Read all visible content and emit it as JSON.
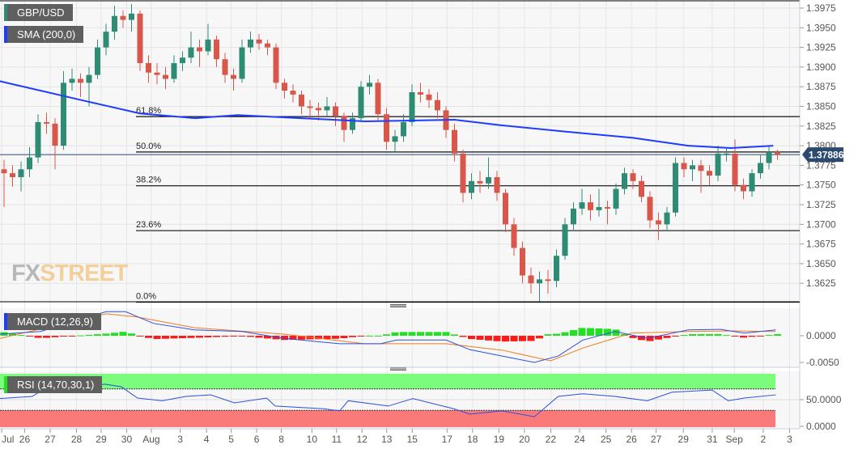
{
  "symbol": "GBP/USD",
  "indicators": {
    "sma": "SMA (200,0)",
    "macd": "MACD (12,26,9)",
    "rsi": "RSI (14,70,30,1)"
  },
  "logo": {
    "fx": "FX",
    "street": "STREET"
  },
  "colors": {
    "up": "#2e8b74",
    "down": "#d9574a",
    "sma": "#1e3cff",
    "macd": "#2b50e0",
    "signal": "#f07a20",
    "hist_up": "#22e022",
    "hist_down": "#ff1a1a",
    "rsi": "#2b50e0",
    "overbought": "#7cfc7c",
    "oversold": "#fa7a7a",
    "price_tag": "#2c4a6e"
  },
  "chart_data": [
    {
      "type": "candlestick",
      "title": "GBP/USD",
      "ylim": [
        1.3595,
        1.399
      ],
      "y_ticks": [
        "1.3975",
        "1.3950",
        "1.3925",
        "1.3900",
        "1.3875",
        "1.3850",
        "1.3825",
        "1.3800",
        "1.3775",
        "1.3750",
        "1.3725",
        "1.3700",
        "1.3675",
        "1.3650",
        "1.3625"
      ],
      "last_price": "1.37886",
      "x_labels": [
        [
          "Jul",
          0.2
        ],
        [
          "26",
          2.9
        ],
        [
          "27",
          5.9
        ],
        [
          "28",
          9
        ],
        [
          "29",
          11.9
        ],
        [
          "30",
          14.9
        ],
        [
          "Aug",
          17.8
        ],
        [
          "3",
          21.2
        ],
        [
          "4",
          24.3
        ],
        [
          "5",
          27.2
        ],
        [
          "6",
          30.2
        ],
        [
          "8",
          33.1
        ],
        [
          "10",
          36.7
        ],
        [
          "11",
          39.6
        ],
        [
          "12",
          42.6
        ],
        [
          "13",
          45.5
        ],
        [
          "15",
          48.5
        ],
        [
          "17",
          52.6
        ],
        [
          "18",
          55.6
        ],
        [
          "19",
          58.7
        ],
        [
          "20",
          61.7
        ],
        [
          "22",
          64.8
        ],
        [
          "24",
          68.2
        ],
        [
          "25",
          71.3
        ],
        [
          "26",
          74.3
        ],
        [
          "27",
          77.2
        ],
        [
          "29",
          80.4
        ],
        [
          "31",
          83.8
        ],
        [
          "Sep",
          86.4
        ],
        [
          "2",
          89.8
        ],
        [
          "3",
          92.9
        ]
      ],
      "fibonacci": [
        {
          "label": "61.8%",
          "price": 1.3837
        },
        {
          "label": "50.0%",
          "price": 1.3792
        },
        {
          "label": "38.2%",
          "price": 1.3749
        },
        {
          "label": "23.6%",
          "price": 1.3692
        },
        {
          "label": "0.0%",
          "price": 1.3601
        }
      ],
      "ohlc": [
        [
          1.377,
          1.3782,
          1.3722,
          1.3765
        ],
        [
          1.3765,
          1.3775,
          1.3748,
          1.376
        ],
        [
          1.376,
          1.378,
          1.3742,
          1.377
        ],
        [
          1.377,
          1.3798,
          1.376,
          1.3785
        ],
        [
          1.3785,
          1.384,
          1.3778,
          1.383
        ],
        [
          1.383,
          1.3842,
          1.3815,
          1.3828
        ],
        [
          1.3828,
          1.3835,
          1.377,
          1.38
        ],
        [
          1.38,
          1.3895,
          1.3795,
          1.388
        ],
        [
          1.388,
          1.3898,
          1.387,
          1.3885
        ],
        [
          1.3885,
          1.3892,
          1.3862,
          1.388
        ],
        [
          1.388,
          1.39,
          1.385,
          1.389
        ],
        [
          1.389,
          1.3935,
          1.3885,
          1.3925
        ],
        [
          1.3925,
          1.3955,
          1.3915,
          1.3945
        ],
        [
          1.3945,
          1.3978,
          1.3935,
          1.3965
        ],
        [
          1.3965,
          1.3972,
          1.395,
          1.396
        ],
        [
          1.396,
          1.398,
          1.3945,
          1.3968
        ],
        [
          1.3968,
          1.3972,
          1.3895,
          1.3905
        ],
        [
          1.3905,
          1.3915,
          1.388,
          1.3893
        ],
        [
          1.3893,
          1.3905,
          1.3878,
          1.389
        ],
        [
          1.389,
          1.39,
          1.3872,
          1.3885
        ],
        [
          1.3885,
          1.3915,
          1.388,
          1.3905
        ],
        [
          1.3905,
          1.392,
          1.3895,
          1.3912
        ],
        [
          1.3912,
          1.3945,
          1.3905,
          1.3925
        ],
        [
          1.3925,
          1.3935,
          1.39,
          1.392
        ],
        [
          1.392,
          1.3955,
          1.3915,
          1.3935
        ],
        [
          1.3935,
          1.394,
          1.39,
          1.391
        ],
        [
          1.391,
          1.3918,
          1.388,
          1.389
        ],
        [
          1.389,
          1.3898,
          1.387,
          1.3885
        ],
        [
          1.3885,
          1.3935,
          1.388,
          1.3925
        ],
        [
          1.3925,
          1.3945,
          1.3918,
          1.3935
        ],
        [
          1.3935,
          1.3942,
          1.3922,
          1.393
        ],
        [
          1.393,
          1.3935,
          1.3915,
          1.3925
        ],
        [
          1.3925,
          1.393,
          1.3872,
          1.388
        ],
        [
          1.388,
          1.3885,
          1.386,
          1.387
        ],
        [
          1.387,
          1.3878,
          1.3855,
          1.3865
        ],
        [
          1.3865,
          1.387,
          1.384,
          1.385
        ],
        [
          1.385,
          1.3858,
          1.3835,
          1.3848
        ],
        [
          1.3848,
          1.3855,
          1.3832,
          1.3845
        ],
        [
          1.3845,
          1.3862,
          1.3838,
          1.385
        ],
        [
          1.385,
          1.3855,
          1.3825,
          1.3838
        ],
        [
          1.3838,
          1.3842,
          1.3805,
          1.382
        ],
        [
          1.382,
          1.3842,
          1.3815,
          1.3835
        ],
        [
          1.3835,
          1.3882,
          1.383,
          1.3875
        ],
        [
          1.3875,
          1.389,
          1.3865,
          1.388
        ],
        [
          1.388,
          1.3885,
          1.3832,
          1.384
        ],
        [
          1.384,
          1.3848,
          1.3795,
          1.3805
        ],
        [
          1.3805,
          1.382,
          1.3792,
          1.3812
        ],
        [
          1.3812,
          1.384,
          1.3805,
          1.383
        ],
        [
          1.383,
          1.3878,
          1.3825,
          1.3868
        ],
        [
          1.3868,
          1.388,
          1.3855,
          1.3865
        ],
        [
          1.3865,
          1.3872,
          1.3848,
          1.3858
        ],
        [
          1.3858,
          1.3868,
          1.3835,
          1.3845
        ],
        [
          1.3845,
          1.385,
          1.381,
          1.382
        ],
        [
          1.382,
          1.3828,
          1.378,
          1.379
        ],
        [
          1.379,
          1.3795,
          1.3728,
          1.374
        ],
        [
          1.374,
          1.3765,
          1.3732,
          1.3755
        ],
        [
          1.3755,
          1.3768,
          1.374,
          1.3752
        ],
        [
          1.3752,
          1.3785,
          1.3745,
          1.376
        ],
        [
          1.376,
          1.3768,
          1.373,
          1.374
        ],
        [
          1.374,
          1.3745,
          1.369,
          1.37
        ],
        [
          1.37,
          1.3708,
          1.366,
          1.367
        ],
        [
          1.367,
          1.3678,
          1.3625,
          1.3635
        ],
        [
          1.3635,
          1.3645,
          1.3612,
          1.3625
        ],
        [
          1.3625,
          1.364,
          1.3602,
          1.363
        ],
        [
          1.363,
          1.3642,
          1.3612,
          1.3628
        ],
        [
          1.3628,
          1.3668,
          1.362,
          1.366
        ],
        [
          1.366,
          1.3708,
          1.3655,
          1.37
        ],
        [
          1.37,
          1.3728,
          1.3692,
          1.372
        ],
        [
          1.372,
          1.3745,
          1.3712,
          1.3728
        ],
        [
          1.3728,
          1.3738,
          1.3705,
          1.3718
        ],
        [
          1.3718,
          1.3745,
          1.371,
          1.3722
        ],
        [
          1.3722,
          1.373,
          1.37,
          1.372
        ],
        [
          1.372,
          1.3752,
          1.3712,
          1.3745
        ],
        [
          1.3745,
          1.3772,
          1.3738,
          1.3765
        ],
        [
          1.3765,
          1.377,
          1.3745,
          1.3755
        ],
        [
          1.3755,
          1.3762,
          1.3728,
          1.3735
        ],
        [
          1.3735,
          1.3742,
          1.3695,
          1.3705
        ],
        [
          1.3705,
          1.3715,
          1.368,
          1.37
        ],
        [
          1.37,
          1.3722,
          1.3692,
          1.3715
        ],
        [
          1.3715,
          1.3785,
          1.371,
          1.3778
        ],
        [
          1.3778,
          1.3785,
          1.376,
          1.377
        ],
        [
          1.377,
          1.3782,
          1.3755,
          1.3775
        ],
        [
          1.3775,
          1.3782,
          1.374,
          1.3768
        ],
        [
          1.3768,
          1.3775,
          1.375,
          1.3762
        ],
        [
          1.3762,
          1.38,
          1.3755,
          1.379
        ],
        [
          1.379,
          1.3798,
          1.378,
          1.379
        ],
        [
          1.379,
          1.3808,
          1.3742,
          1.375
        ],
        [
          1.375,
          1.3758,
          1.3732,
          1.3742
        ],
        [
          1.3742,
          1.377,
          1.3735,
          1.3765
        ],
        [
          1.3765,
          1.3788,
          1.3758,
          1.3778
        ],
        [
          1.3778,
          1.38,
          1.377,
          1.3792
        ],
        [
          1.3792,
          1.3795,
          1.3782,
          1.37886
        ]
      ],
      "sma_200": [
        [
          -0.5,
          1.3882
        ],
        [
          9.5,
          1.3857
        ],
        [
          16,
          1.3841
        ],
        [
          22.5,
          1.3835
        ],
        [
          27.5,
          1.3839
        ],
        [
          33,
          1.3836
        ],
        [
          42.5,
          1.3831
        ],
        [
          53,
          1.3833
        ],
        [
          58.5,
          1.3826
        ],
        [
          66,
          1.3818
        ],
        [
          74,
          1.381
        ],
        [
          80.5,
          1.38
        ],
        [
          85.5,
          1.3797
        ],
        [
          90.5,
          1.38
        ]
      ]
    },
    {
      "type": "line",
      "title": "MACD (12,26,9)",
      "y_ticks": [
        "0.0000",
        "-0.0050"
      ],
      "macd": [
        [
          -0.5,
          0.0003
        ],
        [
          4.3,
          0.0008
        ],
        [
          12,
          0.0045
        ],
        [
          14.3,
          0.0045
        ],
        [
          17.6,
          0.0023
        ],
        [
          22.4,
          0.0011
        ],
        [
          28,
          0.0008
        ],
        [
          32.9,
          -0.0005
        ],
        [
          39.5,
          -0.0015
        ],
        [
          44.3,
          -0.0015
        ],
        [
          46.2,
          -0.0008
        ],
        [
          52,
          -0.0008
        ],
        [
          54.8,
          -0.0026
        ],
        [
          58.6,
          -0.0038
        ],
        [
          62.4,
          -0.005
        ],
        [
          65.2,
          -0.0038
        ],
        [
          68.1,
          -0.0008
        ],
        [
          71.9,
          0.0008
        ],
        [
          75.7,
          -0.0005
        ],
        [
          80.5,
          0.0011
        ],
        [
          84.3,
          0.0012
        ],
        [
          87.1,
          0.0005
        ],
        [
          90.8,
          0.0011
        ]
      ],
      "signal": [
        [
          -0.5,
          -0.0005
        ],
        [
          12,
          0.0041
        ],
        [
          15.7,
          0.0035
        ],
        [
          22.4,
          0.0015
        ],
        [
          32.9,
          0.0003
        ],
        [
          42.4,
          -0.0015
        ],
        [
          52,
          -0.0015
        ],
        [
          58.6,
          -0.0027
        ],
        [
          64.3,
          -0.0047
        ],
        [
          68.1,
          -0.0023
        ],
        [
          73.8,
          0.0005
        ],
        [
          80.5,
          0.0008
        ],
        [
          85.2,
          0.0009
        ],
        [
          90.8,
          0.0008
        ]
      ]
    },
    {
      "type": "line",
      "title": "RSI (14,70,30,1)",
      "y_ticks": [
        "50.0000",
        "0.0000"
      ],
      "levels": [
        70,
        30
      ],
      "rsi": [
        [
          -0.5,
          52
        ],
        [
          3.3,
          56
        ],
        [
          5.2,
          74
        ],
        [
          9,
          74
        ],
        [
          11.9,
          79
        ],
        [
          13.8,
          74
        ],
        [
          15.7,
          53
        ],
        [
          18.6,
          48
        ],
        [
          21.4,
          56
        ],
        [
          24.3,
          59
        ],
        [
          27.1,
          44
        ],
        [
          30.9,
          53
        ],
        [
          31.9,
          38
        ],
        [
          37.6,
          33
        ],
        [
          39.5,
          29
        ],
        [
          40.5,
          48
        ],
        [
          45.2,
          38
        ],
        [
          48.1,
          52
        ],
        [
          52.9,
          33
        ],
        [
          54.8,
          23
        ],
        [
          58.6,
          29
        ],
        [
          62.4,
          18
        ],
        [
          65.2,
          56
        ],
        [
          68.1,
          61
        ],
        [
          71.9,
          56
        ],
        [
          75.7,
          48
        ],
        [
          78.6,
          64
        ],
        [
          83.3,
          68
        ],
        [
          85.2,
          48
        ],
        [
          87.1,
          53
        ],
        [
          90.8,
          59
        ]
      ]
    }
  ]
}
